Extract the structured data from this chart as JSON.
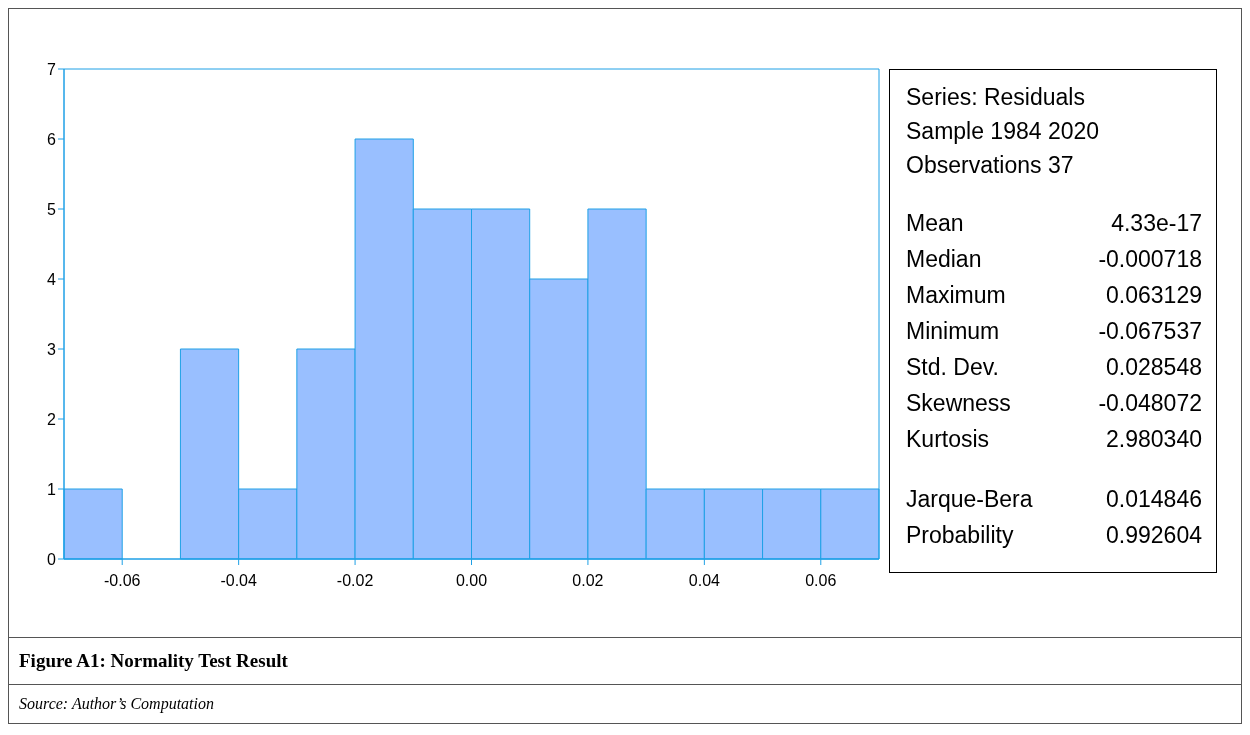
{
  "chart_data": {
    "type": "histogram",
    "title": "Figure A1: Normality Test Result",
    "bins": [
      -0.07,
      -0.06,
      -0.05,
      -0.04,
      -0.03,
      -0.02,
      -0.01,
      0.0,
      0.01,
      0.02,
      0.03,
      0.04,
      0.05,
      0.06,
      0.07
    ],
    "values": [
      1,
      0,
      3,
      1,
      3,
      6,
      5,
      5,
      4,
      5,
      1,
      1,
      1,
      1
    ],
    "color": "#99bfff",
    "xlim": [
      -0.07,
      0.07
    ],
    "xticks": [
      {
        "value": -0.06,
        "label": "-0.06"
      },
      {
        "value": -0.04,
        "label": "-0.04"
      },
      {
        "value": -0.02,
        "label": "-0.02"
      },
      {
        "value": 0,
        "label": "0.00"
      },
      {
        "value": 0.02,
        "label": "0.02"
      },
      {
        "value": 0.04,
        "label": "0.04"
      },
      {
        "value": 0.06,
        "label": "0.06"
      }
    ],
    "ylim": [
      0,
      7
    ],
    "yticks": [
      0,
      1,
      2,
      3,
      4,
      5,
      6,
      7
    ],
    "annotations": [
      "Series: Residuals",
      "Sample 1984 2020",
      "Observations 37",
      "Mean 4.33e-17",
      "Median -0.000718",
      "Maximum 0.063129",
      "Minimum -0.067537",
      "Std. Dev. 0.028548",
      "Skewness -0.048072",
      "Kurtosis 2.980340",
      "Jarque-Bera 0.014846",
      "Probability 0.992604",
      "Source: Author’s Computation"
    ]
  }
}
